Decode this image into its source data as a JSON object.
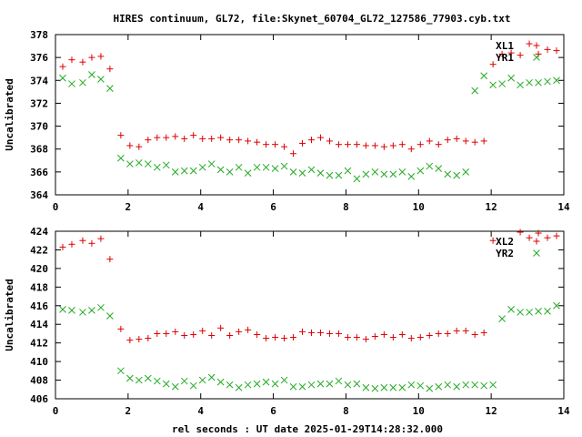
{
  "title": "HIRES continuum, GL72, file:Skynet_60704_GL72_127586_77903.cyb.txt",
  "xlabel": "rel seconds : UT date 2025-01-29T14:28:32.000",
  "colors": {
    "red": "#dd0000",
    "green": "#22aa22",
    "axis": "#000000"
  },
  "chart_data": [
    {
      "type": "scatter",
      "ylabel": "Uncalibrated",
      "xlim": [
        0,
        14
      ],
      "ylim": [
        364,
        378
      ],
      "xticks": [
        0,
        2,
        4,
        6,
        8,
        10,
        12,
        14
      ],
      "yticks": [
        364,
        366,
        368,
        370,
        372,
        374,
        376,
        378
      ],
      "series": [
        {
          "name": "XL1",
          "marker": "plus",
          "color": "#dd0000",
          "x": [
            0.2,
            0.45,
            0.75,
            1.0,
            1.25,
            1.5,
            1.8,
            2.05,
            2.3,
            2.55,
            2.8,
            3.05,
            3.3,
            3.55,
            3.8,
            4.05,
            4.3,
            4.55,
            4.8,
            5.05,
            5.3,
            5.55,
            5.8,
            6.05,
            6.3,
            6.55,
            6.8,
            7.05,
            7.3,
            7.55,
            7.8,
            8.05,
            8.3,
            8.55,
            8.8,
            9.05,
            9.3,
            9.55,
            9.8,
            10.05,
            10.3,
            10.55,
            10.8,
            11.05,
            11.3,
            11.55,
            11.8,
            12.05,
            12.3,
            12.55,
            12.8,
            13.05,
            13.3,
            13.55,
            13.8
          ],
          "y": [
            375.2,
            375.8,
            375.6,
            376.0,
            376.1,
            375.0,
            369.2,
            368.3,
            368.2,
            368.8,
            369.0,
            369.0,
            369.1,
            368.9,
            369.2,
            368.9,
            368.9,
            369.0,
            368.8,
            368.8,
            368.7,
            368.6,
            368.4,
            368.4,
            368.2,
            367.6,
            368.5,
            368.8,
            369.0,
            368.7,
            368.4,
            368.4,
            368.4,
            368.3,
            368.3,
            368.2,
            368.3,
            368.4,
            368.0,
            368.4,
            368.7,
            368.4,
            368.8,
            368.9,
            368.7,
            368.6,
            368.7,
            375.4,
            376.3,
            376.4,
            376.2,
            377.2,
            376.3,
            376.7,
            376.6
          ]
        },
        {
          "name": "YR1",
          "marker": "cross",
          "color": "#22aa22",
          "x": [
            0.2,
            0.45,
            0.75,
            1.0,
            1.25,
            1.5,
            1.8,
            2.05,
            2.3,
            2.55,
            2.8,
            3.05,
            3.3,
            3.55,
            3.8,
            4.05,
            4.3,
            4.55,
            4.8,
            5.05,
            5.3,
            5.55,
            5.8,
            6.05,
            6.3,
            6.55,
            6.8,
            7.05,
            7.3,
            7.55,
            7.8,
            8.05,
            8.3,
            8.55,
            8.8,
            9.05,
            9.3,
            9.55,
            9.8,
            10.05,
            10.3,
            10.55,
            10.8,
            11.05,
            11.3,
            11.55,
            11.8,
            12.05,
            12.3,
            12.55,
            12.8,
            13.05,
            13.3,
            13.55,
            13.8
          ],
          "y": [
            374.2,
            373.7,
            373.8,
            374.5,
            374.1,
            373.3,
            367.2,
            366.7,
            366.8,
            366.7,
            366.4,
            366.6,
            366.0,
            366.1,
            366.1,
            366.4,
            366.7,
            366.2,
            366.0,
            366.4,
            365.9,
            366.4,
            366.4,
            366.3,
            366.5,
            366.0,
            365.9,
            366.2,
            365.9,
            365.7,
            365.7,
            366.1,
            365.4,
            365.8,
            366.0,
            365.8,
            365.8,
            366.0,
            365.6,
            366.1,
            366.5,
            366.3,
            365.8,
            365.7,
            366.0,
            373.1,
            374.4,
            373.6,
            373.7,
            374.2,
            373.6,
            373.8,
            373.8,
            373.9,
            374.0
          ]
        }
      ]
    },
    {
      "type": "scatter",
      "ylabel": "Uncalibrated",
      "xlim": [
        0,
        14
      ],
      "ylim": [
        406,
        424
      ],
      "xticks": [
        0,
        2,
        4,
        6,
        8,
        10,
        12,
        14
      ],
      "yticks": [
        406,
        408,
        410,
        412,
        414,
        416,
        418,
        420,
        422,
        424
      ],
      "series": [
        {
          "name": "XL2",
          "marker": "plus",
          "color": "#dd0000",
          "x": [
            0.2,
            0.45,
            0.75,
            1.0,
            1.25,
            1.5,
            1.8,
            2.05,
            2.3,
            2.55,
            2.8,
            3.05,
            3.3,
            3.55,
            3.8,
            4.05,
            4.3,
            4.55,
            4.8,
            5.05,
            5.3,
            5.55,
            5.8,
            6.05,
            6.3,
            6.55,
            6.8,
            7.05,
            7.3,
            7.55,
            7.8,
            8.05,
            8.3,
            8.55,
            8.8,
            9.05,
            9.3,
            9.55,
            9.8,
            10.05,
            10.3,
            10.55,
            10.8,
            11.05,
            11.3,
            11.55,
            11.8,
            12.05,
            12.8,
            13.05,
            13.3,
            13.55,
            13.8
          ],
          "y": [
            422.3,
            422.6,
            423.0,
            422.7,
            423.2,
            421.0,
            413.5,
            412.3,
            412.4,
            412.5,
            413.0,
            413.0,
            413.2,
            412.8,
            412.9,
            413.3,
            412.8,
            413.6,
            412.8,
            413.2,
            413.4,
            412.9,
            412.5,
            412.6,
            412.5,
            412.6,
            413.2,
            413.1,
            413.1,
            413.0,
            413.0,
            412.6,
            412.6,
            412.4,
            412.7,
            412.9,
            412.6,
            412.9,
            412.5,
            412.6,
            412.8,
            413.0,
            413.0,
            413.3,
            413.3,
            412.9,
            413.1,
            423.0,
            423.9,
            423.3,
            423.8,
            423.3,
            423.5
          ]
        },
        {
          "name": "YR2",
          "marker": "cross",
          "color": "#22aa22",
          "x": [
            0.2,
            0.45,
            0.75,
            1.0,
            1.25,
            1.5,
            1.8,
            2.05,
            2.3,
            2.55,
            2.8,
            3.05,
            3.3,
            3.55,
            3.8,
            4.05,
            4.3,
            4.55,
            4.8,
            5.05,
            5.3,
            5.55,
            5.8,
            6.05,
            6.3,
            6.55,
            6.8,
            7.05,
            7.3,
            7.55,
            7.8,
            8.05,
            8.3,
            8.55,
            8.8,
            9.05,
            9.3,
            9.55,
            9.8,
            10.05,
            10.3,
            10.55,
            10.8,
            11.05,
            11.3,
            11.55,
            11.8,
            12.05,
            12.3,
            12.55,
            12.8,
            13.05,
            13.3,
            13.55,
            13.8
          ],
          "y": [
            415.6,
            415.5,
            415.3,
            415.5,
            415.8,
            414.9,
            409.0,
            408.2,
            408.0,
            408.2,
            407.9,
            407.6,
            407.3,
            407.9,
            407.4,
            408.0,
            408.3,
            407.8,
            407.5,
            407.2,
            407.5,
            407.6,
            407.8,
            407.6,
            408.0,
            407.3,
            407.3,
            407.5,
            407.6,
            407.6,
            407.9,
            407.5,
            407.6,
            407.2,
            407.1,
            407.2,
            407.2,
            407.2,
            407.5,
            407.4,
            407.1,
            407.3,
            407.5,
            407.3,
            407.5,
            407.5,
            407.4,
            407.5,
            414.6,
            415.6,
            415.3,
            415.3,
            415.4,
            415.4,
            416.0
          ]
        }
      ]
    }
  ]
}
